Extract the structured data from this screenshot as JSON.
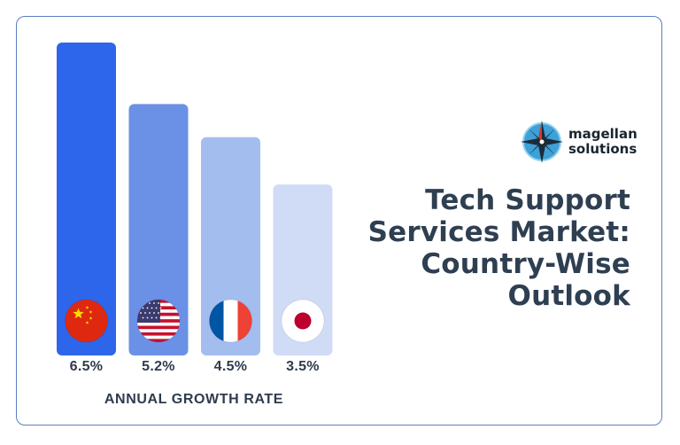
{
  "brand": {
    "line1": "magellan",
    "line2": "solutions",
    "icon": "compass-rose-icon"
  },
  "title_lines": [
    "Tech Support",
    "Services Market:",
    "Country-Wise",
    "Outlook"
  ],
  "chart_data": {
    "type": "bar",
    "title": "Tech Support Services Market: Country-Wise Outlook",
    "categories": [
      "China",
      "United States",
      "France",
      "Japan"
    ],
    "values": [
      6.5,
      5.2,
      4.5,
      3.5
    ],
    "value_labels": [
      "6.5%",
      "5.2%",
      "4.5%",
      "3.5%"
    ],
    "flag_icons": [
      "china-flag-icon",
      "usa-flag-icon",
      "france-flag-icon",
      "japan-flag-icon"
    ],
    "bar_colors": [
      "#2d66eb",
      "#6b91e6",
      "#a3bdee",
      "#d0dbf6"
    ],
    "xlabel": "ANNUAL GROWTH RATE",
    "ylabel": "",
    "ylim": [
      0,
      6.5
    ],
    "grid": false,
    "legend": "none"
  }
}
